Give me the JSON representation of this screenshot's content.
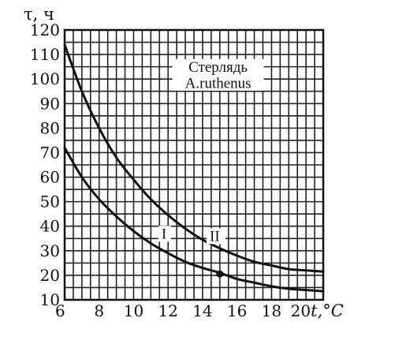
{
  "chart_data": {
    "type": "line",
    "title": "",
    "ylabel": "τ, ч",
    "xlabel": "t,°C",
    "xlim": [
      6,
      21
    ],
    "ylim": [
      10,
      120
    ],
    "xticks": [
      6,
      8,
      10,
      12,
      14,
      16,
      18,
      20
    ],
    "yticks": [
      10,
      20,
      30,
      40,
      50,
      60,
      70,
      80,
      90,
      100,
      110,
      120
    ],
    "grid": true,
    "annotation": {
      "lines": [
        "Стерлядь",
        "A.ruthenus"
      ],
      "x": 14.9,
      "y": [
        103,
        97
      ]
    },
    "series": [
      {
        "name": "II",
        "x": [
          6,
          7,
          8,
          9,
          10,
          11,
          12,
          13,
          14,
          15,
          16,
          17,
          18,
          19,
          20,
          21
        ],
        "y": [
          114,
          95,
          80,
          68,
          59,
          51,
          44.5,
          39,
          34.5,
          31,
          28,
          25.5,
          24,
          22.5,
          22,
          21.5
        ],
        "label_at": [
          14.6,
          34
        ]
      },
      {
        "name": "I",
        "x": [
          6,
          7,
          8,
          9,
          10,
          11,
          12,
          13,
          14,
          15,
          16,
          17,
          18,
          19,
          20,
          21
        ],
        "y": [
          72,
          60,
          51,
          44,
          38,
          33,
          29,
          25.5,
          23,
          21,
          18.5,
          17,
          15.5,
          14.5,
          14,
          13.5
        ],
        "label_at": [
          11.8,
          35
        ]
      }
    ],
    "marker": {
      "x": 15,
      "y": 20.5
    }
  }
}
